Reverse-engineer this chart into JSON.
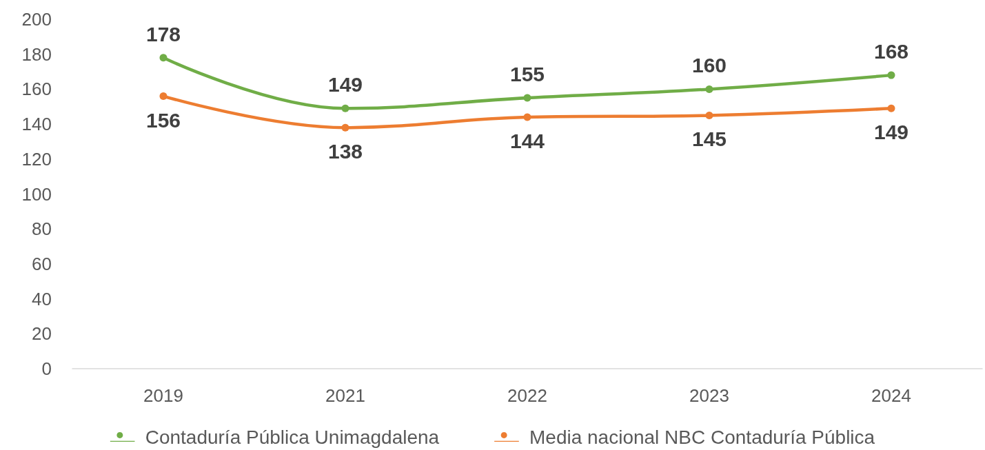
{
  "chart_data": {
    "type": "line",
    "categories": [
      "2019",
      "2021",
      "2022",
      "2023",
      "2024"
    ],
    "series": [
      {
        "name": "Contaduría Pública Unimagdalena",
        "color": "#70ad47",
        "values": [
          178,
          149,
          155,
          160,
          168
        ]
      },
      {
        "name": "Media nacional NBC Contaduría Pública",
        "color": "#ed7d31",
        "values": [
          156,
          138,
          144,
          145,
          149
        ]
      }
    ],
    "ylim": [
      0,
      200
    ],
    "yticks": [
      0,
      20,
      40,
      60,
      80,
      100,
      120,
      140,
      160,
      180,
      200
    ],
    "grid": false,
    "legend": "bottom",
    "marker": "circle",
    "line_style": "solid",
    "data_labels": true
  }
}
